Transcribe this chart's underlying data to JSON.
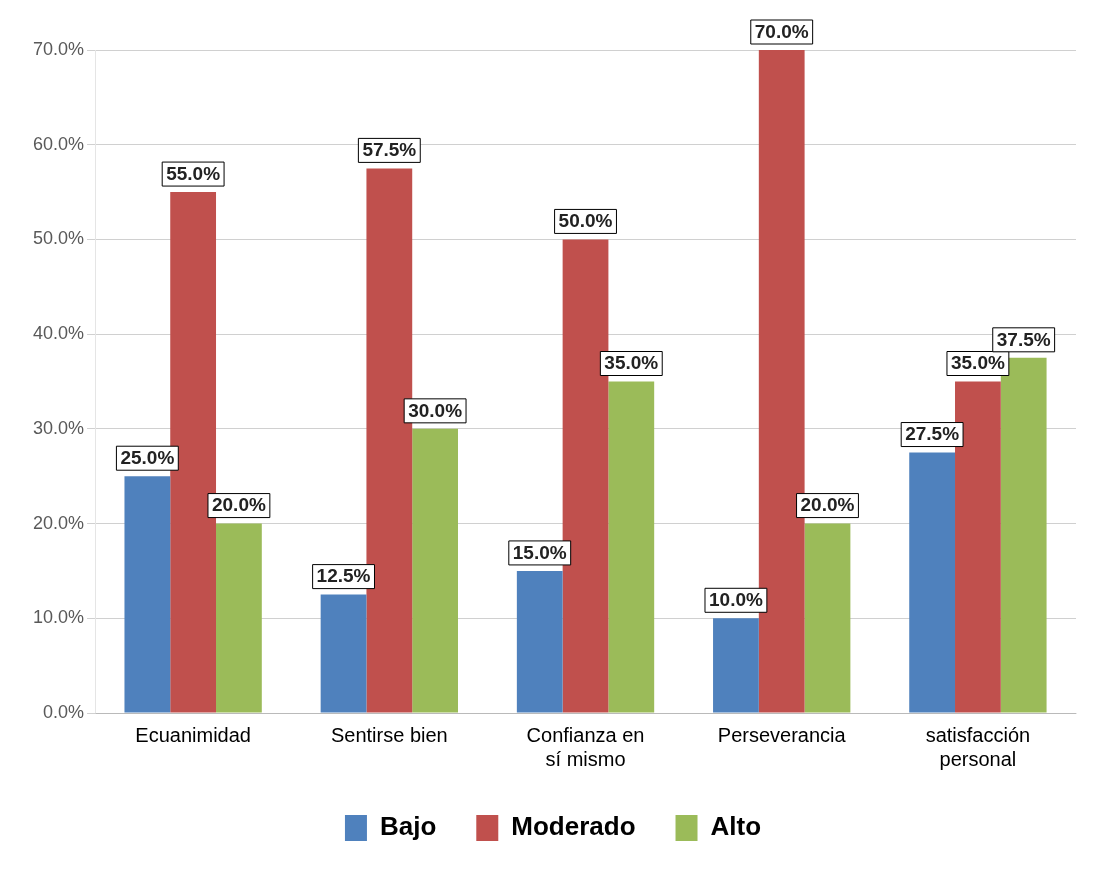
{
  "chart_data": {
    "type": "bar",
    "categories": [
      "Ecuanimidad",
      [
        "Sentirse bien"
      ],
      [
        "Confianza en",
        "sí mismo"
      ],
      "Perseverancia",
      [
        "satisfacción",
        "personal"
      ]
    ],
    "series": [
      {
        "name": "Bajo",
        "color": "#4f81bd",
        "values": [
          25,
          12.5,
          15,
          10,
          27.5
        ],
        "value_labels": [
          "25.0%",
          "12.5%",
          "15.0%",
          "10.0%",
          "27.5%"
        ]
      },
      {
        "name": "Moderado",
        "color": "#c0504d",
        "values": [
          55,
          57.5,
          50,
          70,
          35
        ],
        "value_labels": [
          "55.0%",
          "57.5%",
          "50.0%",
          "70.0%",
          "35.0%"
        ]
      },
      {
        "name": "Alto",
        "color": "#9bbb59",
        "values": [
          20,
          30,
          35,
          20,
          37.5
        ],
        "value_labels": [
          "20.0%",
          "30.0%",
          "35.0%",
          "20.0%",
          "37.5%"
        ]
      }
    ],
    "ylim": [
      0,
      70
    ],
    "yticks": [
      {
        "value": 0,
        "label": "0.0%"
      },
      {
        "value": 10,
        "label": "10.0%"
      },
      {
        "value": 20,
        "label": "20.0%"
      },
      {
        "value": 30,
        "label": "30.0%"
      },
      {
        "value": 40,
        "label": "40.0%"
      },
      {
        "value": 50,
        "label": "50.0%"
      },
      {
        "value": 60,
        "label": "60.0%"
      },
      {
        "value": 70,
        "label": "70.0%"
      }
    ],
    "grid": "y",
    "legend": "bottom"
  }
}
